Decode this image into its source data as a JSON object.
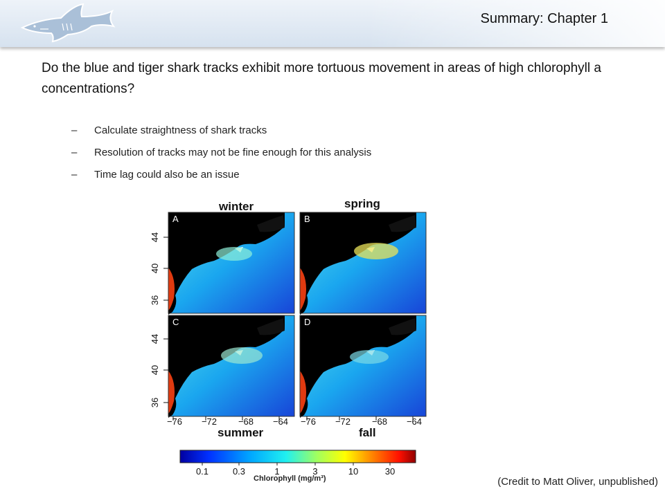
{
  "header": {
    "title": "Summary: Chapter 1",
    "logo_icon": "shark-logo-icon"
  },
  "question": "Do the blue and tiger shark tracks exhibit more tortuous movement in areas of high chlorophyll a concentrations?",
  "bullets": [
    {
      "dash": "–",
      "text": "Calculate straightness of shark tracks"
    },
    {
      "dash": "–",
      "text": "Resolution of tracks may not be fine enough for this analysis"
    },
    {
      "dash": "–",
      "text": "Time lag could also be an issue"
    }
  ],
  "figure": {
    "seasons": {
      "winter": "winter",
      "spring": "spring",
      "summer": "summer",
      "fall": "fall"
    },
    "panel_letters": [
      "A",
      "B",
      "C",
      "D"
    ],
    "lat_ticks": [
      "44",
      "40",
      "36"
    ],
    "lon_ticks": [
      "−76",
      "−72",
      "−68",
      "−64"
    ],
    "colorbar": {
      "ticks": [
        "0.1",
        "0.3",
        "1",
        "3",
        "10",
        "30"
      ],
      "label": "Chlorophyll (mg/m³)"
    }
  },
  "credit": "(Credit to Matt Oliver, unpublished)"
}
